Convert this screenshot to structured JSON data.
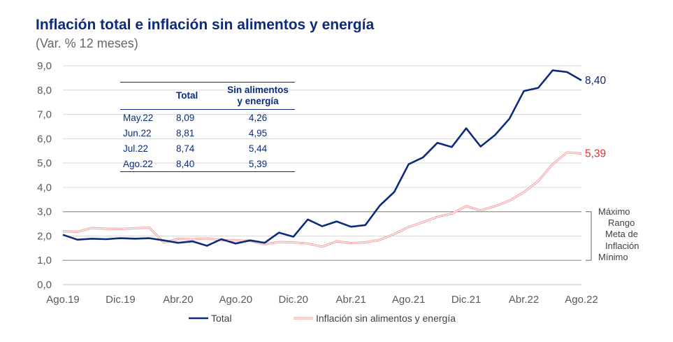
{
  "header": {
    "title": "Inflación total e inflación sin alimentos y energía",
    "subtitle": "(Var. % 12 meses)"
  },
  "colors": {
    "total": "#0d2b7a",
    "core": "#f4a7a7",
    "core_label": "#e03030",
    "grid": "#d9d9d9",
    "band": "#a0a0a0",
    "axis_text": "#595959"
  },
  "table": {
    "headers": [
      "",
      "Total",
      "Sin alimentos y energía"
    ],
    "rows": [
      [
        "May.22",
        "8,09",
        "4,26"
      ],
      [
        "Jun.22",
        "8,81",
        "4,95"
      ],
      [
        "Jul.22",
        "8,74",
        "5,44"
      ],
      [
        "Ago.22",
        "8,40",
        "5,39"
      ]
    ]
  },
  "chart_data": {
    "type": "line",
    "x": [
      "Ago.19",
      "Sep.19",
      "Oct.19",
      "Nov.19",
      "Dic.19",
      "Ene.20",
      "Feb.20",
      "Mar.20",
      "Abr.20",
      "May.20",
      "Jun.20",
      "Jul.20",
      "Ago.20",
      "Sep.20",
      "Oct.20",
      "Nov.20",
      "Dic.20",
      "Ene.21",
      "Feb.21",
      "Mar.21",
      "Abr.21",
      "May.21",
      "Jun.21",
      "Jul.21",
      "Ago.21",
      "Sep.21",
      "Oct.21",
      "Nov.21",
      "Dic.21",
      "Ene.22",
      "Feb.22",
      "Mar.22",
      "Abr.22",
      "May.22",
      "Jun.22",
      "Jul.22",
      "Ago.22"
    ],
    "x_tick_labels": [
      "Ago.19",
      "Dic.19",
      "Abr.20",
      "Ago.20",
      "Dic.20",
      "Abr.21",
      "Ago.21",
      "Dic.21",
      "Abr.22",
      "Ago.22"
    ],
    "series": [
      {
        "name": "Total",
        "values": [
          2.05,
          1.85,
          1.89,
          1.87,
          1.91,
          1.89,
          1.91,
          1.82,
          1.72,
          1.78,
          1.6,
          1.87,
          1.69,
          1.82,
          1.72,
          2.14,
          1.97,
          2.68,
          2.4,
          2.6,
          2.38,
          2.45,
          3.25,
          3.81,
          4.95,
          5.23,
          5.83,
          5.66,
          6.43,
          5.68,
          6.15,
          6.82,
          7.96,
          8.09,
          8.81,
          8.74,
          8.4
        ]
      },
      {
        "name": "Inflación sin alimentos y energía",
        "values": [
          2.2,
          2.17,
          2.33,
          2.3,
          2.29,
          2.32,
          2.34,
          1.73,
          1.88,
          1.87,
          1.9,
          1.83,
          1.82,
          1.8,
          1.66,
          1.75,
          1.74,
          1.69,
          1.56,
          1.78,
          1.71,
          1.74,
          1.84,
          2.08,
          2.37,
          2.57,
          2.79,
          2.92,
          3.23,
          3.05,
          3.23,
          3.45,
          3.8,
          4.26,
          4.95,
          5.44,
          5.39
        ]
      }
    ],
    "end_labels": {
      "total": "8,40",
      "core": "5,39"
    },
    "y_tick_labels": [
      "0,0",
      "1,0",
      "2,0",
      "3,0",
      "4,0",
      "5,0",
      "6,0",
      "7,0",
      "8,0",
      "9,0"
    ],
    "ylim": [
      0,
      9
    ],
    "grid": true,
    "reference_lines": [
      3.0,
      1.0
    ],
    "band_labels": {
      "max": "Máximo",
      "range": "Rango",
      "target": "Meta de Inflación",
      "min": "Mínimo"
    },
    "legend": {
      "position": "bottom",
      "entries": [
        "Total",
        "Inflación sin alimentos y energía"
      ]
    }
  }
}
